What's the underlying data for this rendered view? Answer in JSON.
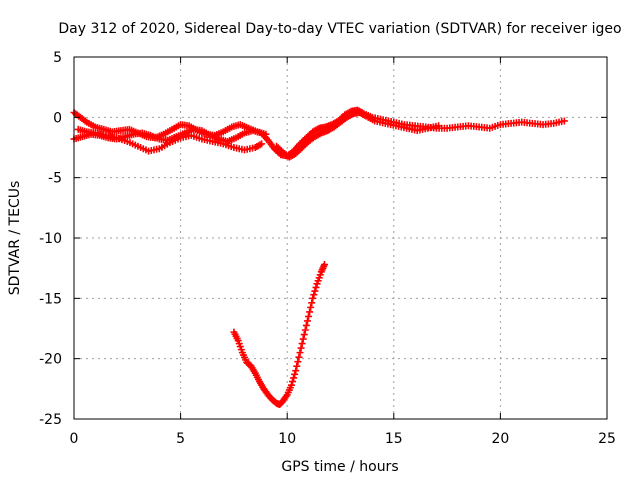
{
  "chart_data": {
    "type": "scatter",
    "title": "Day 312 of 2020, Sidereal Day-to-day VTEC variation (SDTVAR) for receiver igeo",
    "xlabel": "GPS time / hours",
    "ylabel": "SDTVAR / TECUs",
    "xlim": [
      0,
      25
    ],
    "ylim": [
      -25,
      5
    ],
    "xticks": [
      0,
      5,
      10,
      15,
      20,
      25
    ],
    "yticks": [
      5,
      0,
      -5,
      -10,
      -15,
      -20,
      -25
    ],
    "xtick_labels": [
      "0",
      "5",
      "10",
      "15",
      "20",
      "25"
    ],
    "ytick_labels": [
      "5",
      "0",
      "-5",
      "-10",
      "-15",
      "-20",
      "-25"
    ],
    "grid": true,
    "marker": "plus",
    "series": [
      {
        "name": "track-a",
        "color": "#ff0000",
        "x": [
          0,
          0.3,
          0.6,
          1.0,
          1.4,
          1.8,
          2.2,
          2.6,
          3.0,
          3.4,
          3.8,
          4.2,
          4.6,
          5.0,
          5.4,
          5.8,
          6.2,
          6.6,
          7.0,
          7.4,
          7.8,
          8.2,
          8.6,
          9.0
        ],
        "y": [
          0.4,
          0.0,
          -0.4,
          -0.8,
          -1.0,
          -1.2,
          -1.1,
          -1.0,
          -1.3,
          -1.6,
          -1.7,
          -1.4,
          -1.0,
          -0.6,
          -0.7,
          -1.1,
          -1.4,
          -1.5,
          -1.2,
          -0.8,
          -0.6,
          -0.9,
          -1.2,
          -1.4
        ]
      },
      {
        "name": "track-b",
        "color": "#ff0000",
        "x": [
          0,
          0.4,
          0.8,
          1.2,
          1.6,
          2.0,
          2.4,
          2.8,
          3.2,
          3.6,
          4.0,
          4.4,
          4.8,
          5.2,
          5.6,
          6.0,
          6.4,
          6.8,
          7.2,
          7.6,
          8.0,
          8.4,
          8.8
        ],
        "y": [
          -1.8,
          -1.6,
          -1.4,
          -1.5,
          -1.7,
          -1.8,
          -1.6,
          -1.4,
          -1.3,
          -1.5,
          -1.8,
          -1.9,
          -1.6,
          -1.3,
          -1.0,
          -1.1,
          -1.5,
          -1.8,
          -2.0,
          -1.7,
          -1.3,
          -1.1,
          -1.3
        ]
      },
      {
        "name": "track-c",
        "color": "#ff0000",
        "x": [
          0.2,
          0.6,
          1.0,
          1.5,
          2.0,
          2.5,
          3.0,
          3.5,
          4.0,
          4.5,
          5.0,
          5.5,
          6.0,
          6.5,
          7.0,
          7.5,
          8.0,
          8.5,
          8.8
        ],
        "y": [
          -1.0,
          -1.2,
          -1.3,
          -1.5,
          -1.7,
          -2.0,
          -2.4,
          -2.8,
          -2.6,
          -2.1,
          -1.7,
          -1.5,
          -1.8,
          -2.0,
          -2.2,
          -2.5,
          -2.7,
          -2.5,
          -2.2
        ]
      },
      {
        "name": "track-d",
        "color": "#ff0000",
        "x": [
          8.8,
          9.1,
          9.4,
          9.7,
          10.0,
          10.3,
          10.6,
          10.9,
          11.2,
          11.5,
          11.8,
          12.1,
          12.4,
          12.7,
          13.0,
          13.3,
          13.6,
          14.0,
          14.5,
          15.0,
          15.5,
          16.0,
          16.5,
          17.0,
          17.5,
          18.0,
          18.5,
          19.0,
          19.5,
          20.0,
          20.5,
          21.0,
          21.5,
          22.0,
          22.5,
          23.0
        ],
        "y": [
          -1.3,
          -1.9,
          -2.6,
          -3.1,
          -3.2,
          -2.8,
          -2.2,
          -1.7,
          -1.2,
          -0.9,
          -0.8,
          -0.6,
          -0.3,
          0.2,
          0.5,
          0.6,
          0.3,
          0.0,
          -0.2,
          -0.4,
          -0.6,
          -0.7,
          -0.8,
          -0.9,
          -0.9,
          -0.8,
          -0.7,
          -0.8,
          -0.9,
          -0.6,
          -0.5,
          -0.4,
          -0.5,
          -0.6,
          -0.5,
          -0.3
        ]
      },
      {
        "name": "track-e",
        "color": "#ff0000",
        "x": [
          9.5,
          9.8,
          10.1,
          10.4,
          10.7,
          11.0,
          11.3,
          11.6,
          11.9,
          12.2,
          12.5,
          12.8,
          13.1,
          13.4,
          13.7,
          14.1,
          14.6,
          15.1,
          15.6,
          16.1,
          16.6,
          17.1
        ],
        "y": [
          -2.4,
          -2.9,
          -3.3,
          -3.0,
          -2.5,
          -2.0,
          -1.6,
          -1.3,
          -1.1,
          -0.8,
          -0.4,
          0.0,
          0.3,
          0.4,
          0.1,
          -0.3,
          -0.5,
          -0.7,
          -0.9,
          -1.1,
          -0.9,
          -0.7
        ]
      },
      {
        "name": "dip",
        "color": "#ff0000",
        "x": [
          7.5,
          7.7,
          7.9,
          8.1,
          8.3,
          8.5,
          8.7,
          8.9,
          9.1,
          9.3,
          9.5,
          9.65,
          9.8,
          10.0,
          10.2,
          10.4,
          10.6,
          10.8,
          11.0,
          11.2,
          11.4,
          11.6,
          11.75
        ],
        "y": [
          -17.8,
          -18.5,
          -19.5,
          -20.3,
          -20.6,
          -21.2,
          -21.9,
          -22.5,
          -23.0,
          -23.4,
          -23.7,
          -23.8,
          -23.5,
          -23.0,
          -22.2,
          -21.0,
          -19.5,
          -18.0,
          -16.5,
          -15.0,
          -13.8,
          -12.8,
          -12.2
        ]
      }
    ]
  }
}
